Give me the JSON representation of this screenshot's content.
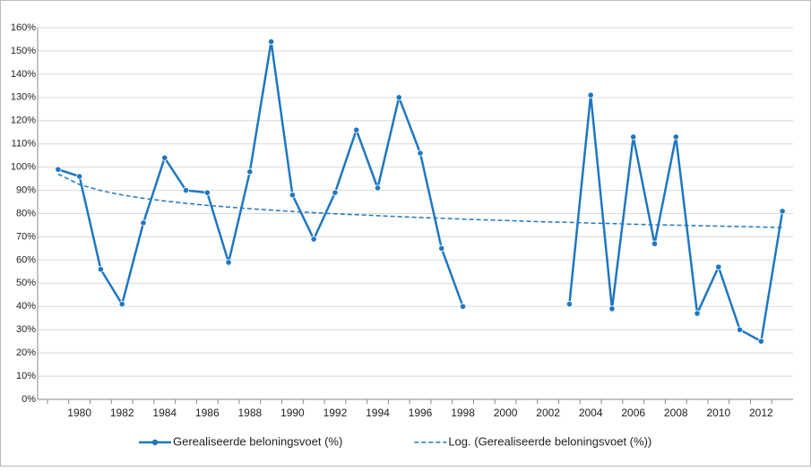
{
  "chart_data": {
    "type": "line",
    "categories": [
      null,
      "1980",
      null,
      "1982",
      null,
      "1984",
      null,
      "1986",
      null,
      "1988",
      null,
      "1990",
      null,
      "1992",
      null,
      "1994",
      null,
      "1996",
      null,
      "1998",
      null,
      "2000",
      null,
      "2002",
      null,
      "2004",
      null,
      "2006",
      null,
      "2008",
      null,
      "2010",
      null,
      "2012",
      null
    ],
    "series": [
      {
        "name": "Gerealiseerde beloningsvoet (%)",
        "color": "#1f77c0",
        "style": "solid",
        "markers": true,
        "values": [
          99,
          96,
          56,
          41,
          76,
          104,
          90,
          89,
          59,
          98,
          154,
          88,
          69,
          89,
          116,
          91,
          130,
          106,
          65,
          40,
          null,
          null,
          null,
          null,
          41,
          131,
          39,
          113,
          67,
          113,
          37,
          57,
          30,
          25,
          81
        ]
      },
      {
        "name": "Log. (Gerealiseerde beloningsvoet (%))",
        "color": "#1f77c0",
        "style": "dashed",
        "markers": false,
        "values": [
          97,
          92.5,
          89.9,
          88,
          86.6,
          85.4,
          84.4,
          83.5,
          82.8,
          82.1,
          81.5,
          80.9,
          80.4,
          79.9,
          79.5,
          79.1,
          78.7,
          78.3,
          78,
          77.6,
          77.3,
          77,
          76.7,
          76.4,
          76.2,
          75.9,
          75.7,
          75.4,
          75.2,
          75,
          74.8,
          74.6,
          74.4,
          74.2,
          74
        ]
      }
    ],
    "ylim": [
      0,
      160
    ],
    "yticks": [
      {
        "value": 0,
        "label": "0%"
      },
      {
        "value": 10,
        "label": "10%"
      },
      {
        "value": 20,
        "label": "20%"
      },
      {
        "value": 30,
        "label": "30%"
      },
      {
        "value": 40,
        "label": "40%"
      },
      {
        "value": 50,
        "label": "50%"
      },
      {
        "value": 60,
        "label": "60%"
      },
      {
        "value": 70,
        "label": "70%"
      },
      {
        "value": 80,
        "label": "80%"
      },
      {
        "value": 90,
        "label": "90%"
      },
      {
        "value": 100,
        "label": "100%"
      },
      {
        "value": 110,
        "label": "110%"
      },
      {
        "value": 120,
        "label": "120%"
      },
      {
        "value": 130,
        "label": "130%"
      },
      {
        "value": 140,
        "label": "140%"
      },
      {
        "value": 150,
        "label": "150%"
      },
      {
        "value": 160,
        "label": "160%"
      }
    ],
    "grid": true,
    "legend": "bottom"
  }
}
